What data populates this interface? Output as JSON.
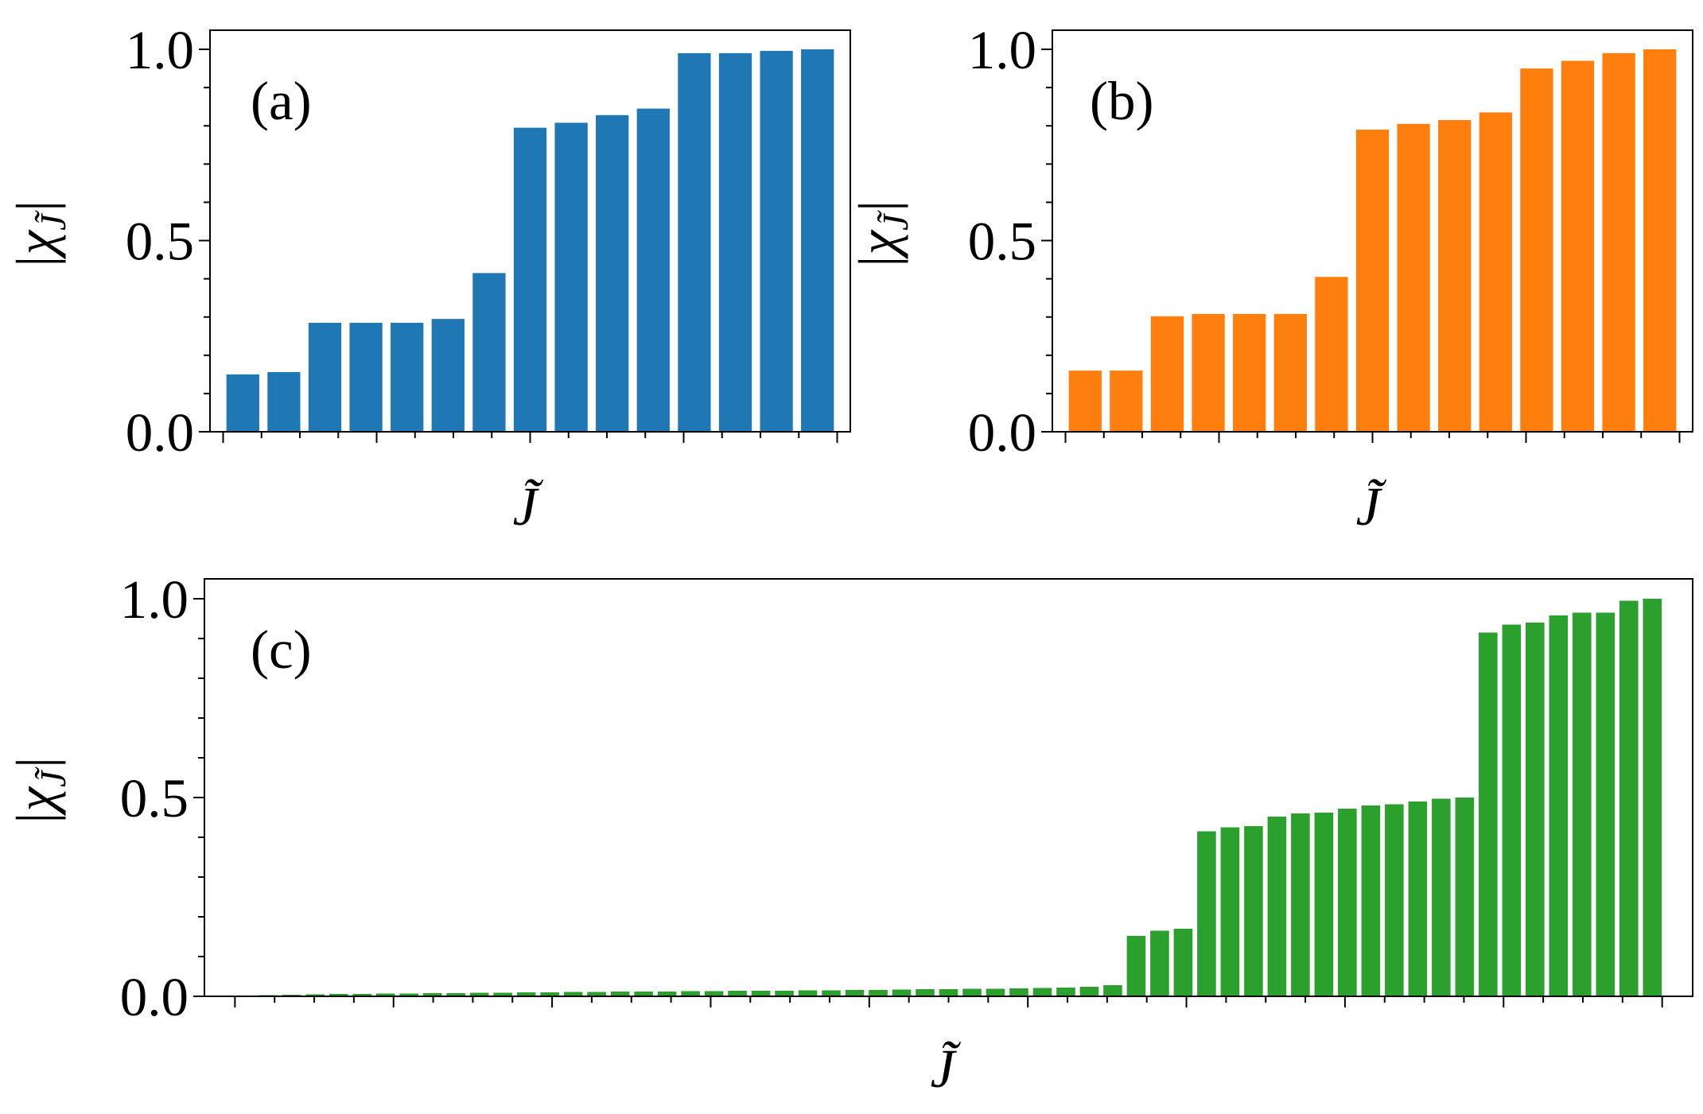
{
  "chart_data": [
    {
      "type": "bar",
      "panel_label": "(a)",
      "xlabel": "J̃",
      "ylabel": "|χ_J̃|",
      "ylim": [
        0,
        1.05
      ],
      "yticks": [
        "0.0",
        "0.5",
        "1.0"
      ],
      "color": "#1f77b4",
      "values": [
        0.15,
        0.156,
        0.285,
        0.285,
        0.285,
        0.295,
        0.415,
        0.795,
        0.808,
        0.828,
        0.845,
        0.99,
        0.99,
        0.996,
        1.0
      ]
    },
    {
      "type": "bar",
      "panel_label": "(b)",
      "xlabel": "J̃",
      "ylabel": "|χ_J̃|",
      "ylim": [
        0,
        1.05
      ],
      "yticks": [
        "0.0",
        "0.5",
        "1.0"
      ],
      "color": "#ff7f0e",
      "values": [
        0.16,
        0.16,
        0.302,
        0.308,
        0.308,
        0.308,
        0.405,
        0.79,
        0.805,
        0.815,
        0.835,
        0.95,
        0.97,
        0.99,
        1.0
      ]
    },
    {
      "type": "bar",
      "panel_label": "(c)",
      "xlabel": "J̃",
      "ylabel": "|χ_J̃|",
      "ylim": [
        0,
        1.05
      ],
      "yticks": [
        "0.0",
        "0.5",
        "1.0"
      ],
      "color": "#2ca02c",
      "values": [
        0.002,
        0.003,
        0.004,
        0.005,
        0.006,
        0.006,
        0.007,
        0.007,
        0.008,
        0.008,
        0.009,
        0.009,
        0.01,
        0.01,
        0.011,
        0.011,
        0.012,
        0.012,
        0.012,
        0.013,
        0.013,
        0.014,
        0.014,
        0.014,
        0.015,
        0.015,
        0.016,
        0.016,
        0.017,
        0.018,
        0.018,
        0.019,
        0.019,
        0.02,
        0.021,
        0.022,
        0.024,
        0.028,
        0.152,
        0.165,
        0.17,
        0.415,
        0.425,
        0.428,
        0.452,
        0.46,
        0.462,
        0.472,
        0.48,
        0.483,
        0.49,
        0.497,
        0.5,
        0.915,
        0.935,
        0.94,
        0.958,
        0.965,
        0.965,
        0.995,
        1.0
      ]
    }
  ]
}
